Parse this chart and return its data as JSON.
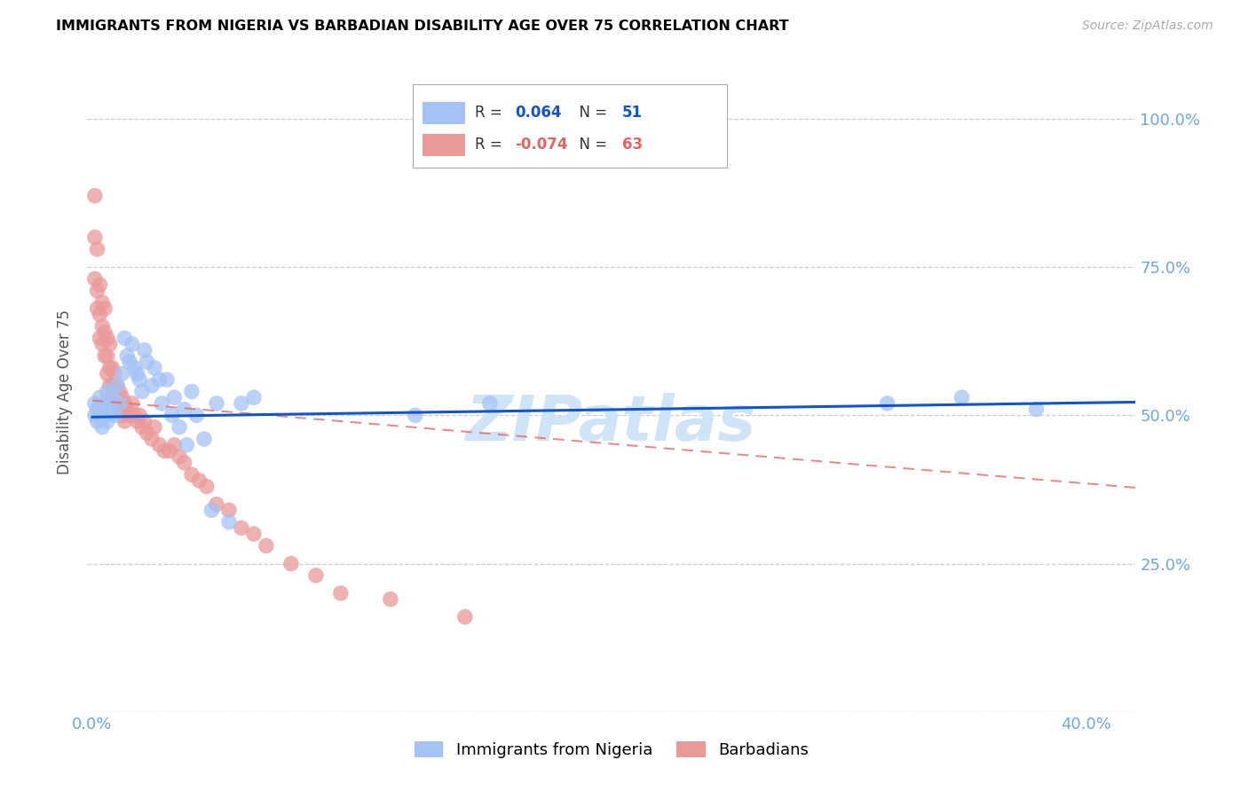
{
  "title": "IMMIGRANTS FROM NIGERIA VS BARBADIAN DISABILITY AGE OVER 75 CORRELATION CHART",
  "source": "Source: ZipAtlas.com",
  "ylabel_label": "Disability Age Over 75",
  "xlim": [
    -0.002,
    0.42
  ],
  "ylim": [
    0.0,
    1.08
  ],
  "x_ticks": [
    0.0,
    0.1,
    0.2,
    0.3,
    0.4
  ],
  "x_tick_labels": [
    "0.0%",
    "",
    "",
    "",
    "40.0%"
  ],
  "y_ticks": [
    0.0,
    0.25,
    0.5,
    0.75,
    1.0
  ],
  "y_tick_labels_right": [
    "",
    "25.0%",
    "50.0%",
    "75.0%",
    "100.0%"
  ],
  "nigeria_R": "0.064",
  "nigeria_N": "51",
  "barbadian_R": "-0.074",
  "barbadian_N": "63",
  "nigeria_color": "#a4c2f4",
  "barbadian_color": "#ea9999",
  "trendline_nigeria_color": "#1155cc",
  "trendline_barbadian_color": "#e06666",
  "nigeria_x": [
    0.001,
    0.001,
    0.002,
    0.002,
    0.003,
    0.003,
    0.004,
    0.004,
    0.005,
    0.005,
    0.006,
    0.006,
    0.007,
    0.008,
    0.009,
    0.01,
    0.011,
    0.012,
    0.013,
    0.014,
    0.015,
    0.016,
    0.017,
    0.018,
    0.019,
    0.02,
    0.021,
    0.022,
    0.024,
    0.025,
    0.027,
    0.028,
    0.03,
    0.032,
    0.033,
    0.035,
    0.037,
    0.038,
    0.04,
    0.042,
    0.045,
    0.048,
    0.05,
    0.055,
    0.06,
    0.065,
    0.13,
    0.16,
    0.32,
    0.35,
    0.38
  ],
  "nigeria_y": [
    0.5,
    0.52,
    0.51,
    0.49,
    0.5,
    0.53,
    0.51,
    0.48,
    0.52,
    0.5,
    0.54,
    0.49,
    0.51,
    0.53,
    0.5,
    0.55,
    0.52,
    0.57,
    0.63,
    0.6,
    0.59,
    0.62,
    0.58,
    0.57,
    0.56,
    0.54,
    0.61,
    0.59,
    0.55,
    0.58,
    0.56,
    0.52,
    0.56,
    0.5,
    0.53,
    0.48,
    0.51,
    0.45,
    0.54,
    0.5,
    0.46,
    0.34,
    0.52,
    0.32,
    0.52,
    0.53,
    0.5,
    0.52,
    0.52,
    0.53,
    0.51
  ],
  "barbadian_x": [
    0.001,
    0.001,
    0.001,
    0.002,
    0.002,
    0.002,
    0.003,
    0.003,
    0.003,
    0.004,
    0.004,
    0.004,
    0.005,
    0.005,
    0.005,
    0.006,
    0.006,
    0.006,
    0.007,
    0.007,
    0.007,
    0.008,
    0.008,
    0.009,
    0.009,
    0.01,
    0.01,
    0.011,
    0.011,
    0.012,
    0.012,
    0.013,
    0.013,
    0.014,
    0.015,
    0.016,
    0.017,
    0.018,
    0.019,
    0.02,
    0.021,
    0.022,
    0.024,
    0.025,
    0.027,
    0.029,
    0.031,
    0.033,
    0.035,
    0.037,
    0.04,
    0.043,
    0.046,
    0.05,
    0.055,
    0.06,
    0.065,
    0.07,
    0.08,
    0.09,
    0.1,
    0.12,
    0.15
  ],
  "barbadian_y": [
    0.87,
    0.8,
    0.73,
    0.78,
    0.71,
    0.68,
    0.72,
    0.67,
    0.63,
    0.69,
    0.65,
    0.62,
    0.68,
    0.64,
    0.6,
    0.63,
    0.6,
    0.57,
    0.62,
    0.58,
    0.55,
    0.58,
    0.55,
    0.57,
    0.53,
    0.55,
    0.52,
    0.54,
    0.51,
    0.53,
    0.5,
    0.52,
    0.49,
    0.51,
    0.5,
    0.52,
    0.5,
    0.49,
    0.5,
    0.48,
    0.49,
    0.47,
    0.46,
    0.48,
    0.45,
    0.44,
    0.44,
    0.45,
    0.43,
    0.42,
    0.4,
    0.39,
    0.38,
    0.35,
    0.34,
    0.31,
    0.3,
    0.28,
    0.25,
    0.23,
    0.2,
    0.19,
    0.16
  ],
  "legend_labels": [
    "Immigrants from Nigeria",
    "Barbadians"
  ],
  "background_color": "#ffffff",
  "grid_color": "#cccccc",
  "title_color": "#000000",
  "axis_label_color": "#555555",
  "tick_color": "#6fa8dc",
  "source_color": "#aaaaaa",
  "watermark": "ZIPatlas",
  "watermark_color": "#d0e4f7"
}
